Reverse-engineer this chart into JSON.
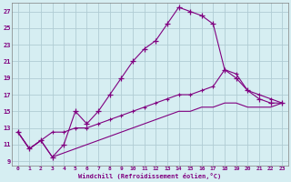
{
  "xlabel": "Windchill (Refroidissement éolien,°C)",
  "background_color": "#d6eef2",
  "line_color": "#800080",
  "grid_color": "#b0ccd4",
  "hours": [
    0,
    1,
    2,
    3,
    4,
    5,
    6,
    7,
    8,
    9,
    10,
    11,
    12,
    13,
    14,
    15,
    16,
    17,
    18,
    19,
    20,
    21,
    22,
    23
  ],
  "temp": [
    12.5,
    10.5,
    11.5,
    9.5,
    11.0,
    15.0,
    13.5,
    15.0,
    17.0,
    19.0,
    21.0,
    22.5,
    23.5,
    25.5,
    27.5,
    27.0,
    26.5,
    25.5,
    20.0,
    19.0,
    17.5,
    16.5,
    16.0,
    16.0
  ],
  "windchill": [
    12.5,
    10.5,
    11.5,
    12.5,
    12.5,
    13.0,
    13.0,
    13.5,
    14.0,
    14.5,
    15.0,
    15.5,
    16.0,
    16.5,
    17.0,
    17.0,
    17.5,
    18.0,
    20.0,
    19.5,
    17.5,
    17.0,
    16.5,
    16.0
  ],
  "windchill2": [
    12.5,
    10.5,
    11.5,
    9.5,
    10.0,
    10.5,
    11.0,
    11.5,
    12.0,
    12.5,
    13.0,
    13.5,
    14.0,
    14.5,
    15.0,
    15.0,
    15.5,
    15.5,
    16.0,
    16.0,
    15.5,
    15.5,
    15.5,
    16.0
  ],
  "ylim": [
    8.5,
    28
  ],
  "xlim": [
    -0.5,
    23.5
  ],
  "yticks": [
    9,
    11,
    13,
    15,
    17,
    19,
    21,
    23,
    25,
    27
  ],
  "xticks": [
    0,
    1,
    2,
    3,
    4,
    5,
    6,
    7,
    8,
    9,
    10,
    11,
    12,
    13,
    14,
    15,
    16,
    17,
    18,
    19,
    20,
    21,
    22,
    23
  ]
}
